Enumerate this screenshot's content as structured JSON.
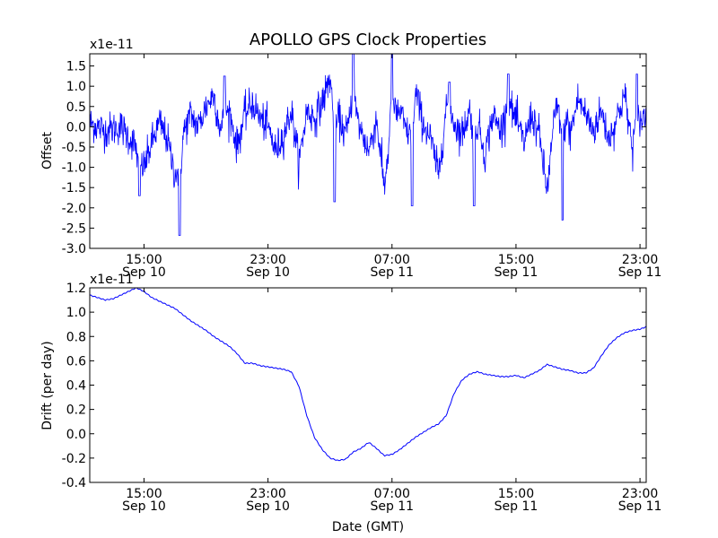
{
  "chart_data": [
    {
      "type": "line",
      "title": "APOLLO GPS Clock Properties",
      "xlabel": "",
      "ylabel": "Offset",
      "y_scale_label": "x1e-11",
      "ylim": [
        -3.0,
        1.8
      ],
      "yticks": [
        -3.0,
        -2.5,
        -2.0,
        -1.5,
        -1.0,
        -0.5,
        0.0,
        0.5,
        1.0,
        1.5
      ],
      "ytick_labels": [
        "-3.0",
        "-2.5",
        "-2.0",
        "-1.5",
        "-1.0",
        "-0.5",
        "0.0",
        "0.5",
        "1.0",
        "1.5"
      ],
      "xlim_hours": [
        11.5,
        47.4
      ],
      "xticks_hours": [
        15,
        23,
        31,
        39,
        47
      ],
      "xtick_labels": [
        [
          "15:00",
          "Sep 10"
        ],
        [
          "23:00",
          "Sep 10"
        ],
        [
          "07:00",
          "Sep 11"
        ],
        [
          "15:00",
          "Sep 11"
        ],
        [
          "23:00",
          "Sep 11"
        ]
      ],
      "color": "#0000ff",
      "series": [
        {
          "name": "Offset",
          "noise_sd": 0.22,
          "x": [
            11.5,
            12.5,
            13.5,
            14.5,
            15.0,
            15.5,
            16.0,
            16.5,
            17.0,
            17.5,
            18.0,
            18.5,
            19.0,
            19.5,
            20.0,
            20.5,
            21.0,
            21.5,
            22.0,
            22.5,
            23.0,
            23.5,
            24.0,
            24.5,
            25.0,
            25.5,
            26.0,
            26.5,
            27.0,
            27.5,
            28.0,
            28.5,
            29.0,
            29.5,
            30.0,
            30.5,
            31.0,
            31.5,
            32.0,
            32.5,
            33.0,
            33.5,
            34.0,
            34.5,
            35.0,
            35.5,
            36.0,
            36.5,
            37.0,
            37.5,
            38.0,
            38.5,
            39.0,
            39.5,
            40.0,
            40.5,
            41.0,
            41.5,
            42.0,
            42.5,
            43.0,
            43.5,
            44.0,
            44.5,
            45.0,
            45.5,
            46.0,
            46.5,
            47.0,
            47.4
          ],
          "y": [
            0.1,
            -0.1,
            0.0,
            -0.5,
            -1.0,
            -0.4,
            0.1,
            -0.3,
            -1.2,
            -0.2,
            0.3,
            0.0,
            0.5,
            0.8,
            -0.2,
            0.4,
            -0.5,
            0.3,
            0.6,
            0.2,
            0.0,
            -0.6,
            -0.2,
            0.4,
            -0.9,
            0.4,
            0.2,
            0.6,
            1.2,
            0.3,
            -0.2,
            0.5,
            -0.1,
            -0.6,
            0.2,
            -1.5,
            0.2,
            0.4,
            -0.2,
            0.9,
            0.1,
            -0.3,
            -1.2,
            0.5,
            0.1,
            -0.2,
            0.4,
            0.2,
            -0.7,
            0.3,
            -0.1,
            0.5,
            0.2,
            -0.4,
            0.3,
            -0.2,
            -1.6,
            0.3,
            0.6,
            -0.2,
            0.7,
            0.3,
            -0.1,
            0.4,
            -0.3,
            0.2,
            0.8,
            -0.5,
            0.1,
            0.3
          ]
        }
      ],
      "spikes": [
        {
          "x": 14.7,
          "y": -1.7
        },
        {
          "x": 17.3,
          "y": -2.68
        },
        {
          "x": 20.2,
          "y": 1.25
        },
        {
          "x": 27.3,
          "y": -1.85
        },
        {
          "x": 28.5,
          "y": 1.8
        },
        {
          "x": 31.0,
          "y": 1.8
        },
        {
          "x": 32.3,
          "y": -1.95
        },
        {
          "x": 34.7,
          "y": 1.1
        },
        {
          "x": 36.3,
          "y": -1.95
        },
        {
          "x": 38.5,
          "y": 1.3
        },
        {
          "x": 42.0,
          "y": -2.3
        },
        {
          "x": 46.8,
          "y": 1.3
        }
      ]
    },
    {
      "type": "line",
      "title": "",
      "xlabel": "Date (GMT)",
      "ylabel": "Drift (per day)",
      "y_scale_label": "x1e-11",
      "ylim": [
        -0.4,
        1.2
      ],
      "yticks": [
        -0.4,
        -0.2,
        0.0,
        0.2,
        0.4,
        0.6,
        0.8,
        1.0,
        1.2
      ],
      "ytick_labels": [
        "-0.4",
        "-0.2",
        "0.0",
        "0.2",
        "0.4",
        "0.6",
        "0.8",
        "1.0",
        "1.2"
      ],
      "xlim_hours": [
        11.5,
        47.4
      ],
      "xticks_hours": [
        15,
        23,
        31,
        39,
        47
      ],
      "xtick_labels": [
        [
          "15:00",
          "Sep 10"
        ],
        [
          "23:00",
          "Sep 10"
        ],
        [
          "07:00",
          "Sep 11"
        ],
        [
          "15:00",
          "Sep 11"
        ],
        [
          "23:00",
          "Sep 11"
        ]
      ],
      "color": "#0000ff",
      "series": [
        {
          "name": "Drift",
          "x": [
            11.5,
            12.0,
            12.5,
            13.0,
            13.5,
            14.0,
            14.5,
            15.0,
            15.5,
            16.0,
            16.5,
            17.0,
            17.5,
            18.0,
            18.5,
            19.0,
            19.5,
            20.0,
            20.5,
            21.0,
            21.5,
            22.0,
            22.5,
            23.0,
            23.5,
            24.0,
            24.5,
            25.0,
            25.5,
            26.0,
            26.5,
            27.0,
            27.5,
            28.0,
            28.5,
            29.0,
            29.5,
            30.0,
            30.5,
            31.0,
            31.5,
            32.0,
            32.5,
            33.0,
            33.5,
            34.0,
            34.5,
            35.0,
            35.5,
            36.0,
            36.5,
            37.0,
            37.5,
            38.0,
            38.5,
            39.0,
            39.5,
            40.0,
            40.5,
            41.0,
            41.5,
            42.0,
            42.5,
            43.0,
            43.5,
            44.0,
            44.5,
            45.0,
            45.5,
            46.0,
            46.5,
            47.0,
            47.4
          ],
          "y": [
            1.14,
            1.12,
            1.1,
            1.11,
            1.14,
            1.17,
            1.2,
            1.17,
            1.12,
            1.09,
            1.06,
            1.03,
            0.98,
            0.93,
            0.89,
            0.85,
            0.8,
            0.76,
            0.72,
            0.66,
            0.58,
            0.58,
            0.56,
            0.55,
            0.54,
            0.53,
            0.51,
            0.39,
            0.15,
            -0.03,
            -0.13,
            -0.2,
            -0.22,
            -0.21,
            -0.15,
            -0.12,
            -0.07,
            -0.12,
            -0.18,
            -0.17,
            -0.13,
            -0.08,
            -0.03,
            0.01,
            0.05,
            0.08,
            0.15,
            0.33,
            0.44,
            0.49,
            0.51,
            0.49,
            0.48,
            0.47,
            0.47,
            0.48,
            0.46,
            0.49,
            0.52,
            0.57,
            0.55,
            0.53,
            0.52,
            0.5,
            0.5,
            0.54,
            0.64,
            0.73,
            0.79,
            0.83,
            0.85,
            0.86,
            0.88
          ]
        }
      ]
    }
  ]
}
